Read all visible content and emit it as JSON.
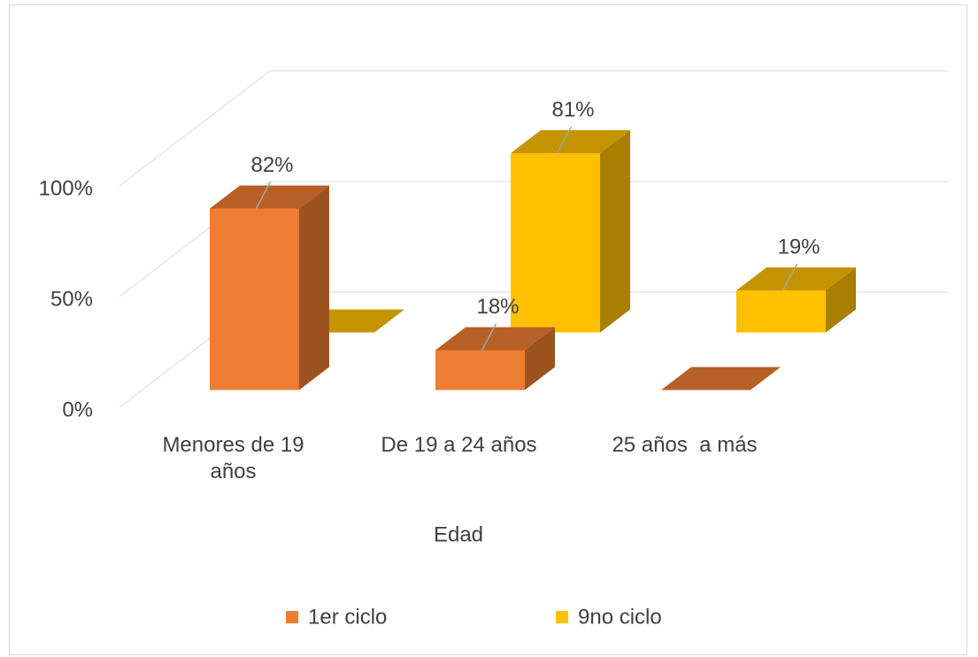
{
  "chart_data": {
    "type": "bar3d",
    "x_label": "Edad",
    "categories": [
      "Menores de 19 años",
      "De 19 a 24 años",
      "25 años  a más"
    ],
    "series": [
      {
        "name": "1er ciclo",
        "color": "#ED7D31",
        "values": [
          82,
          18,
          0
        ],
        "value_labels": [
          "82%",
          "18%",
          null
        ]
      },
      {
        "name": "9no ciclo",
        "color": "#FFC000",
        "values": [
          0,
          81,
          19
        ],
        "value_labels": [
          null,
          "81%",
          "19%"
        ]
      }
    ],
    "ylim": [
      0,
      100
    ],
    "yticks": [
      {
        "value": 0,
        "label": "0%"
      },
      {
        "value": 50,
        "label": "50%"
      },
      {
        "value": 100,
        "label": "100%"
      }
    ],
    "grid": true,
    "legend": "bottom"
  }
}
